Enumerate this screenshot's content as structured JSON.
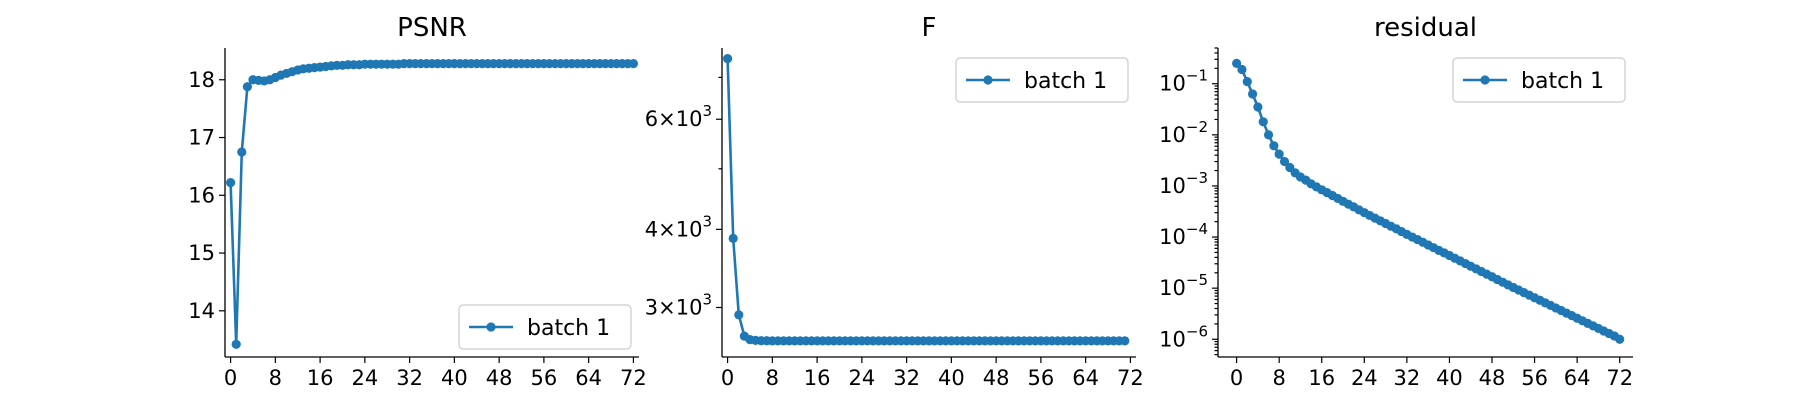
{
  "colors": {
    "series": "#1f77b4"
  },
  "chart_data": [
    {
      "type": "line",
      "title": "PSNR",
      "xlabel": "",
      "ylabel": "",
      "yscale": "linear",
      "xlim": [
        -1,
        73
      ],
      "ylim": [
        13.2,
        18.55
      ],
      "xticks": [
        0,
        8,
        16,
        24,
        32,
        40,
        48,
        56,
        64,
        72
      ],
      "yticks": [
        {
          "value": 14,
          "label": "14"
        },
        {
          "value": 15,
          "label": "15"
        },
        {
          "value": 16,
          "label": "16"
        },
        {
          "value": 17,
          "label": "17"
        },
        {
          "value": 18,
          "label": "18"
        }
      ],
      "legend": "lower right",
      "series": [
        {
          "name": "batch 1",
          "x": [
            0,
            1,
            2,
            3,
            4,
            5,
            6,
            7,
            8,
            9,
            10,
            11,
            12,
            13,
            14,
            15,
            16,
            17,
            18,
            19,
            20,
            21,
            22,
            23,
            24,
            25,
            26,
            27,
            28,
            29,
            30,
            31,
            32,
            33,
            34,
            35,
            36,
            37,
            38,
            39,
            40,
            41,
            42,
            43,
            44,
            45,
            46,
            47,
            48,
            49,
            50,
            51,
            52,
            53,
            54,
            55,
            56,
            57,
            58,
            59,
            60,
            61,
            62,
            63,
            64,
            65,
            66,
            67,
            68,
            69,
            70,
            71,
            72
          ],
          "y": [
            16.22,
            13.42,
            16.75,
            17.88,
            18.0,
            17.99,
            17.98,
            18.0,
            18.04,
            18.08,
            18.11,
            18.14,
            18.17,
            18.19,
            18.2,
            18.21,
            18.22,
            18.23,
            18.24,
            18.25,
            18.25,
            18.26,
            18.26,
            18.26,
            18.27,
            18.27,
            18.27,
            18.27,
            18.27,
            18.27,
            18.27,
            18.28,
            18.28,
            18.28,
            18.28,
            18.28,
            18.28,
            18.28,
            18.28,
            18.28,
            18.28,
            18.28,
            18.28,
            18.28,
            18.28,
            18.28,
            18.28,
            18.28,
            18.28,
            18.28,
            18.28,
            18.28,
            18.28,
            18.28,
            18.28,
            18.28,
            18.28,
            18.28,
            18.28,
            18.28,
            18.28,
            18.28,
            18.28,
            18.28,
            18.28,
            18.28,
            18.28,
            18.28,
            18.28,
            18.28,
            18.28,
            18.28,
            18.28
          ]
        }
      ]
    },
    {
      "type": "line",
      "title": "F",
      "xlabel": "",
      "ylabel": "",
      "yscale": "log",
      "xlim": [
        -1,
        73
      ],
      "ylim": [
        2500,
        7800
      ],
      "xticks": [
        0,
        8,
        16,
        24,
        32,
        40,
        48,
        56,
        64,
        72
      ],
      "yticks": [
        {
          "value": 3000,
          "mant": "3",
          "exp": "3"
        },
        {
          "value": 4000,
          "mant": "4",
          "exp": "3"
        },
        {
          "value": 6000,
          "mant": "6",
          "exp": "3"
        }
      ],
      "minor_yticks": [
        5000,
        7000
      ],
      "legend": "upper right",
      "series": [
        {
          "name": "batch 1",
          "x": [
            0,
            1,
            2,
            3,
            4,
            5,
            6,
            7,
            8,
            9,
            10,
            11,
            12,
            13,
            14,
            15,
            16,
            17,
            18,
            19,
            20,
            21,
            22,
            23,
            24,
            25,
            26,
            27,
            28,
            29,
            30,
            31,
            32,
            33,
            34,
            35,
            36,
            37,
            38,
            39,
            40,
            41,
            42,
            43,
            44,
            45,
            46,
            47,
            48,
            49,
            50,
            51,
            52,
            53,
            54,
            55,
            56,
            57,
            58,
            59,
            60,
            61,
            62,
            63,
            64,
            65,
            66,
            67,
            68,
            69,
            70,
            71
          ],
          "y": [
            7500,
            3870,
            2920,
            2700,
            2665,
            2658,
            2655,
            2654,
            2653,
            2653,
            2653,
            2653,
            2653,
            2653,
            2653,
            2653,
            2653,
            2653,
            2653,
            2653,
            2653,
            2653,
            2653,
            2653,
            2653,
            2653,
            2653,
            2653,
            2653,
            2653,
            2653,
            2653,
            2653,
            2653,
            2653,
            2653,
            2653,
            2653,
            2653,
            2653,
            2653,
            2653,
            2653,
            2653,
            2653,
            2653,
            2653,
            2653,
            2653,
            2653,
            2653,
            2653,
            2653,
            2653,
            2653,
            2653,
            2653,
            2653,
            2653,
            2653,
            2653,
            2653,
            2653,
            2653,
            2653,
            2653,
            2653,
            2653,
            2653,
            2653,
            2653,
            2653
          ]
        }
      ]
    },
    {
      "type": "line",
      "title": "residual",
      "xlabel": "",
      "ylabel": "",
      "yscale": "log",
      "xlim": [
        -3.5,
        74.5
      ],
      "ylim": [
        4.5e-07,
        0.5
      ],
      "xticks": [
        0,
        8,
        16,
        24,
        32,
        40,
        48,
        56,
        64,
        72
      ],
      "yticks": [
        {
          "value": 1e-06,
          "mant": "10",
          "exp": "−6"
        },
        {
          "value": 1e-05,
          "mant": "10",
          "exp": "−5"
        },
        {
          "value": 0.0001,
          "mant": "10",
          "exp": "−4"
        },
        {
          "value": 0.001,
          "mant": "10",
          "exp": "−3"
        },
        {
          "value": 0.01,
          "mant": "10",
          "exp": "−2"
        },
        {
          "value": 0.1,
          "mant": "10",
          "exp": "−1"
        }
      ],
      "legend": "upper right",
      "series": [
        {
          "name": "batch 1",
          "x": [
            0,
            1,
            2,
            3,
            4,
            5,
            6,
            7,
            8,
            9,
            10,
            11,
            12,
            13,
            14,
            15,
            16,
            17,
            18,
            19,
            20,
            21,
            22,
            23,
            24,
            25,
            26,
            27,
            28,
            29,
            30,
            31,
            32,
            33,
            34,
            35,
            36,
            37,
            38,
            39,
            40,
            41,
            42,
            43,
            44,
            45,
            46,
            47,
            48,
            49,
            50,
            51,
            52,
            53,
            54,
            55,
            56,
            57,
            58,
            59,
            60,
            61,
            62,
            63,
            64,
            65,
            66,
            67,
            68,
            69,
            70,
            71,
            72
          ],
          "y": [
            0.25,
            0.19,
            0.11,
            0.063,
            0.035,
            0.018,
            0.01,
            0.0061,
            0.0042,
            0.003,
            0.0023,
            0.0018,
            0.0015,
            0.0013,
            0.0011,
            0.00096,
            0.00084,
            0.00074,
            0.00065,
            0.00057,
            0.0005,
            0.00044,
            0.00039,
            0.00034,
            0.0003,
            0.000265,
            0.000235,
            0.000208,
            0.000184,
            0.000163,
            0.000145,
            0.000128,
            0.000113,
            0.0001,
            8.9e-05,
            7.9e-05,
            7e-05,
            6.2e-05,
            5.5e-05,
            4.9e-05,
            4.35e-05,
            3.85e-05,
            3.42e-05,
            3.03e-05,
            2.69e-05,
            2.39e-05,
            2.12e-05,
            1.88e-05,
            1.67e-05,
            1.48e-05,
            1.31e-05,
            1.16e-05,
            1.03e-05,
            9.2e-06,
            8.2e-06,
            7.3e-06,
            6.5e-06,
            5.8e-06,
            5.15e-06,
            4.6e-06,
            4.1e-06,
            3.65e-06,
            3.25e-06,
            2.9e-06,
            2.58e-06,
            2.3e-06,
            2.05e-06,
            1.83e-06,
            1.63e-06,
            1.45e-06,
            1.3e-06,
            1.16e-06,
            1e-06
          ]
        }
      ]
    }
  ]
}
